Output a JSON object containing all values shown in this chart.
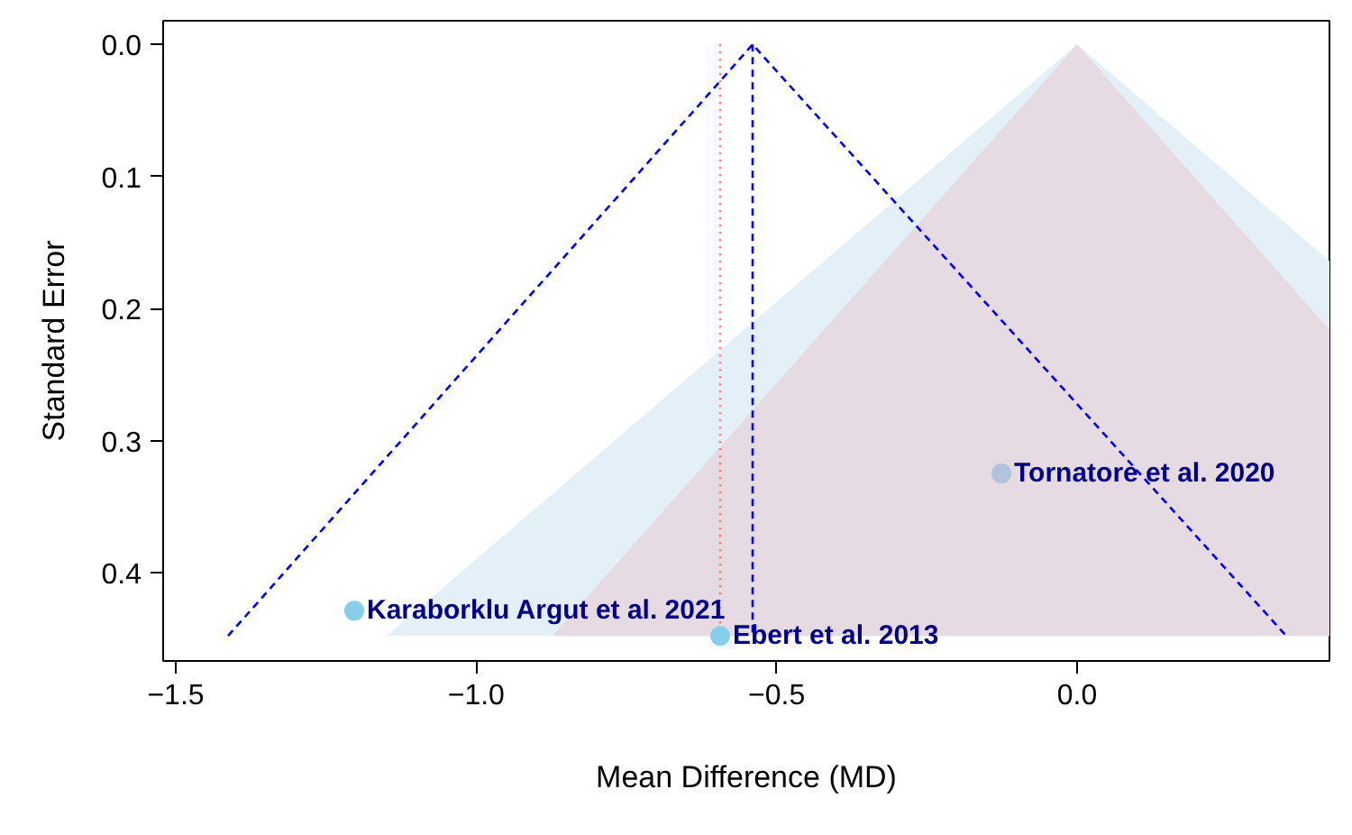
{
  "chart_data": {
    "type": "scatter",
    "xlabel": "Mean Difference (MD)",
    "ylabel": "Standard Error",
    "xlim": [
      -1.521,
      0.42
    ],
    "ylim": [
      0.467,
      -0.018
    ],
    "xticks": [
      {
        "value": -1.5,
        "label": "−1.5"
      },
      {
        "value": -1.0,
        "label": "−1.0"
      },
      {
        "value": -0.5,
        "label": "−0.5"
      },
      {
        "value": 0.0,
        "label": "0.0"
      }
    ],
    "yticks": [
      {
        "value": 0.0,
        "label": "0.0"
      },
      {
        "value": 0.1,
        "label": "0.1"
      },
      {
        "value": 0.2,
        "label": "0.2"
      },
      {
        "value": 0.3,
        "label": "0.3"
      },
      {
        "value": 0.4,
        "label": "0.4"
      }
    ],
    "grid": false,
    "series": [
      {
        "type": "area",
        "color": "#e3f0f7",
        "x": [
          -1.149,
          0.0,
          0.42,
          0.42
        ],
        "values": [
          0.448,
          0.0,
          0.164,
          0.448
        ]
      },
      {
        "type": "area",
        "color": "#e6dbe3",
        "x": [
          -0.873,
          0.0,
          0.42,
          0.42
        ],
        "values": [
          0.448,
          0.0,
          0.216,
          0.448
        ]
      },
      {
        "type": "line",
        "color": "#0000ff",
        "line_style": "dashed",
        "x": [
          -1.413,
          -0.54,
          0.348
        ],
        "values": [
          0.448,
          0.0,
          0.448
        ]
      },
      {
        "type": "line",
        "color": "#0000ff",
        "line_style": "dashed",
        "x": [
          -0.54,
          -0.54
        ],
        "values": [
          0.0,
          0.448
        ]
      },
      {
        "type": "line",
        "color": "#ff6f6f",
        "line_style": "dotted",
        "x": [
          -0.594,
          -0.594
        ],
        "values": [
          0.0,
          0.448
        ]
      },
      {
        "marker": "circle",
        "colors": [
          "#87ceeb",
          "#87ceeb",
          "#b0c4de"
        ],
        "x": [
          -1.203,
          -0.594,
          -0.126
        ],
        "values": [
          0.429,
          0.448,
          0.325
        ]
      }
    ],
    "annotations": [
      {
        "text": "Karaborklu Argut et al. 2021",
        "x": -1.203,
        "y": 0.429
      },
      {
        "text": "Ebert et al. 2013",
        "x": -0.594,
        "y": 0.448
      },
      {
        "text": "Tornatore et al. 2020",
        "x": -0.126,
        "y": 0.325
      }
    ]
  }
}
